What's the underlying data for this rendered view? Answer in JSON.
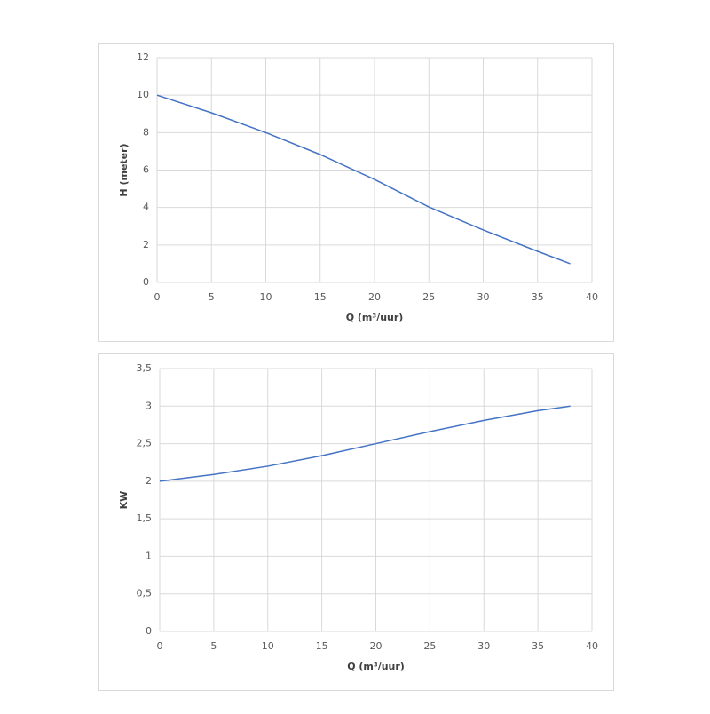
{
  "chart_data": [
    {
      "type": "line",
      "x_label": "Q (m³/uur)",
      "y_label": "H (meter)",
      "x": [
        0,
        5,
        10,
        15,
        20,
        25,
        30,
        35,
        38
      ],
      "series": [
        {
          "color": "#4472c4",
          "values": [
            10,
            9.06,
            8.0,
            6.83,
            5.5,
            4.03,
            2.8,
            1.66,
            1.0
          ]
        }
      ],
      "xlim": [
        0,
        40
      ],
      "xticks": [
        0,
        5,
        10,
        15,
        20,
        25,
        30,
        35,
        40
      ],
      "ylim": [
        0,
        12
      ],
      "yticks": [
        0,
        2,
        4,
        6,
        8,
        10,
        12
      ],
      "grid": true
    },
    {
      "type": "line",
      "x_label": "Q (m³/uur)",
      "y_label": "KW",
      "x": [
        0,
        5,
        10,
        15,
        20,
        25,
        30,
        35,
        38
      ],
      "series": [
        {
          "color": "#4472c4",
          "values": [
            2.0,
            2.09,
            2.2,
            2.34,
            2.5,
            2.66,
            2.81,
            2.94,
            3.0
          ]
        }
      ],
      "xlim": [
        0,
        40
      ],
      "xticks": [
        0,
        5,
        10,
        15,
        20,
        25,
        30,
        35,
        40
      ],
      "ylim": [
        0,
        3.5
      ],
      "yticks": [
        0,
        {
          "value": 0.5,
          "label": "0,5"
        },
        1,
        {
          "value": 1.5,
          "label": "1,5"
        },
        2,
        {
          "value": 2.5,
          "label": "2,5"
        },
        3,
        {
          "value": 3.5,
          "label": "3,5"
        }
      ],
      "grid": true
    }
  ]
}
